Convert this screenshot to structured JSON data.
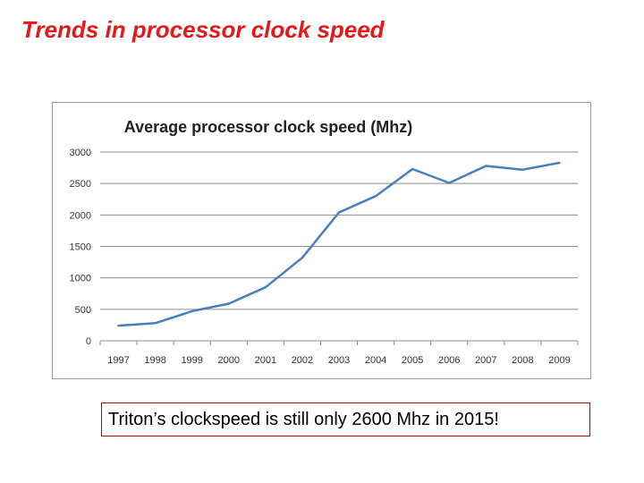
{
  "slide": {
    "title": "Trends in processor clock speed",
    "callout": "Triton’s clockspeed is still only 2600 Mhz in 2015!",
    "title_color": "#e31a1c",
    "callout_border_color": "#c00000"
  },
  "chart_data": {
    "type": "line",
    "title": "Average processor clock speed (Mhz)",
    "xlabel": "",
    "ylabel": "",
    "categories": [
      "1997",
      "1998",
      "1999",
      "2000",
      "2001",
      "2002",
      "2003",
      "2004",
      "2005",
      "2006",
      "2007",
      "2008",
      "2009"
    ],
    "series": [
      {
        "name": "Average processor clock speed (Mhz)",
        "values": [
          240,
          280,
          470,
          590,
          850,
          1320,
          2040,
          2300,
          2730,
          2510,
          2780,
          2720,
          2830
        ],
        "color": "#4a7ebb"
      }
    ],
    "ylim": [
      0,
      3000
    ],
    "yticks": [
      0,
      500,
      1000,
      1500,
      2000,
      2500,
      3000
    ],
    "grid": true,
    "legend": "none"
  }
}
